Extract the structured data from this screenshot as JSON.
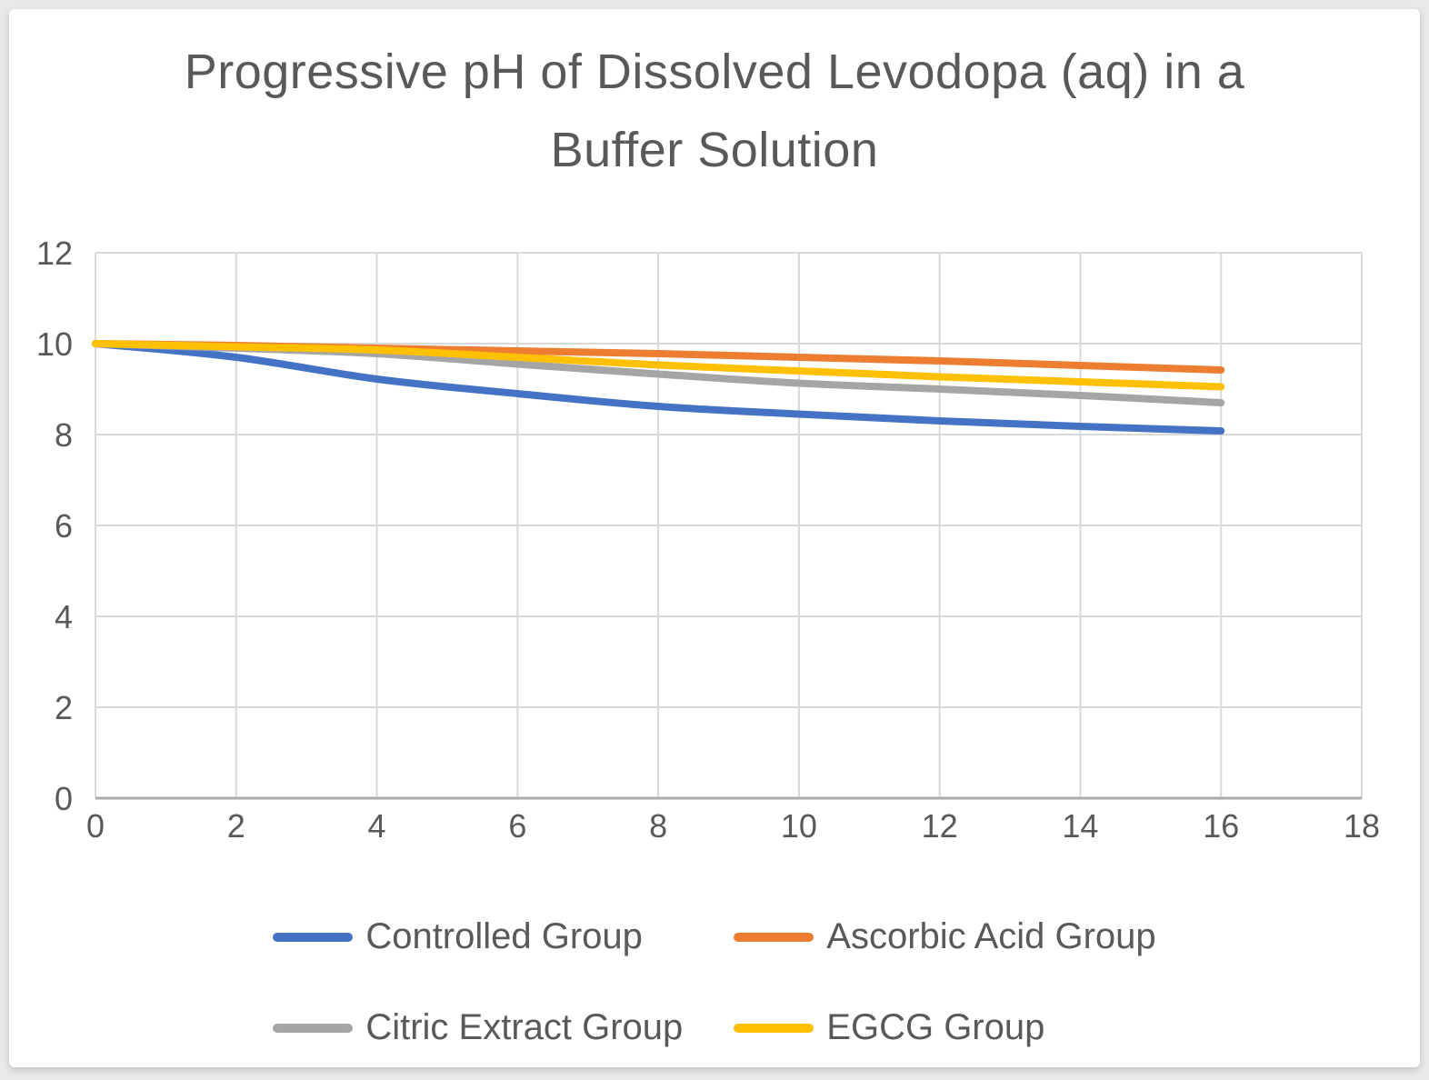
{
  "page": {
    "background_color": "#e9e9e9",
    "card_background_color": "#ffffff"
  },
  "chart_data": {
    "type": "line",
    "title": "Progressive pH of Dissolved Levodopa (aq) in a Buffer Solution",
    "title_lines": [
      "Progressive pH of Dissolved Levodopa (aq) in a",
      "Buffer Solution"
    ],
    "xlabel": "",
    "ylabel": "",
    "x": [
      0,
      2,
      4,
      6,
      8,
      10,
      12,
      14,
      16
    ],
    "series": [
      {
        "name": "Controlled Group",
        "color": "#4472C4",
        "values": [
          10,
          9.7,
          9.22,
          8.9,
          8.62,
          8.45,
          8.3,
          8.18,
          8.08
        ]
      },
      {
        "name": "Ascorbic Acid Group",
        "color": "#ED7D31",
        "values": [
          10,
          9.96,
          9.9,
          9.84,
          9.78,
          9.7,
          9.62,
          9.52,
          9.42
        ]
      },
      {
        "name": "Citric Extract Group",
        "color": "#A5A5A5",
        "values": [
          10,
          9.9,
          9.78,
          9.55,
          9.33,
          9.13,
          9.0,
          8.86,
          8.7
        ]
      },
      {
        "name": "EGCG Group",
        "color": "#FFC000",
        "values": [
          10,
          9.93,
          9.86,
          9.7,
          9.53,
          9.4,
          9.27,
          9.16,
          9.05
        ]
      }
    ],
    "xlim": [
      0,
      18
    ],
    "ylim": [
      0,
      12
    ],
    "x_ticks": [
      0,
      2,
      4,
      6,
      8,
      10,
      12,
      14,
      16,
      18
    ],
    "y_ticks": [
      0,
      2,
      4,
      6,
      8,
      10,
      12
    ],
    "grid": true,
    "gridline_color": "#D9D9D9",
    "axis_line_color": "#ABABAB",
    "tick_label_color": "#595959",
    "title_color": "#595959",
    "legend_position": "bottom",
    "legend_labels": [
      "Controlled Group",
      "Ascorbic Acid Group",
      "Citric Extract Group",
      "EGCG Group"
    ]
  }
}
